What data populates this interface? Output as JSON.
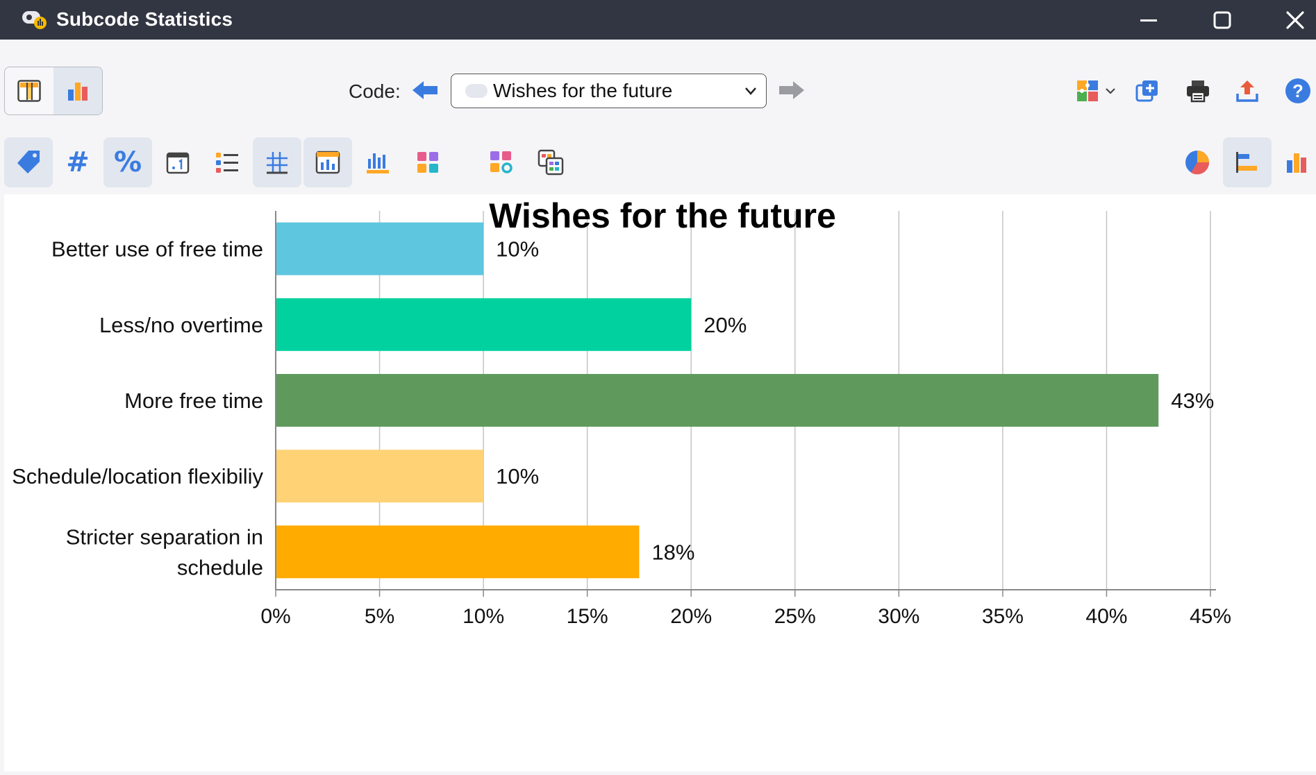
{
  "window": {
    "title": "Subcode Statistics"
  },
  "header": {
    "code_label": "Code:",
    "code_value": "Wishes for the future"
  },
  "icons": {
    "app": "subcode-statistics-app-icon",
    "minimize": "minimize-icon",
    "maximize": "maximize-icon",
    "close": "close-icon",
    "table_view": "table-view-icon",
    "chart_view": "bar-chart-view-icon",
    "prev": "arrow-left-icon",
    "next": "arrow-right-icon",
    "puzzle": "puzzle-icon",
    "add_window": "add-window-icon",
    "print": "printer-icon",
    "export": "export-icon",
    "help": "help-icon"
  },
  "toolbar2": {
    "hash_symbol": "#",
    "percent_symbol": "%"
  },
  "colors": {
    "accent": "#3a7be0",
    "titlebar": "#323642",
    "active_button": "#e1e6ef"
  },
  "chart_data": {
    "type": "bar",
    "orientation": "horizontal",
    "title": "Wishes for the future",
    "categories": [
      [
        "Better use of free time"
      ],
      [
        "Less/no overtime"
      ],
      [
        "More free time"
      ],
      [
        "Schedule/location flexibiliy"
      ],
      [
        "Stricter separation in",
        "schedule"
      ]
    ],
    "values": [
      10,
      20,
      42.5,
      10,
      17.5
    ],
    "labels": [
      "10%",
      "20%",
      "43%",
      "10%",
      "18%"
    ],
    "colors": [
      "#5ec6df",
      "#00d19f",
      "#5f9a5c",
      "#ffd275",
      "#ffab00"
    ],
    "xlim": [
      0,
      45
    ],
    "xticks": [
      0,
      5,
      10,
      15,
      20,
      25,
      30,
      35,
      40,
      45
    ],
    "xtick_labels": [
      "0%",
      "5%",
      "10%",
      "15%",
      "20%",
      "25%",
      "30%",
      "35%",
      "40%",
      "45%"
    ],
    "grid": true
  }
}
